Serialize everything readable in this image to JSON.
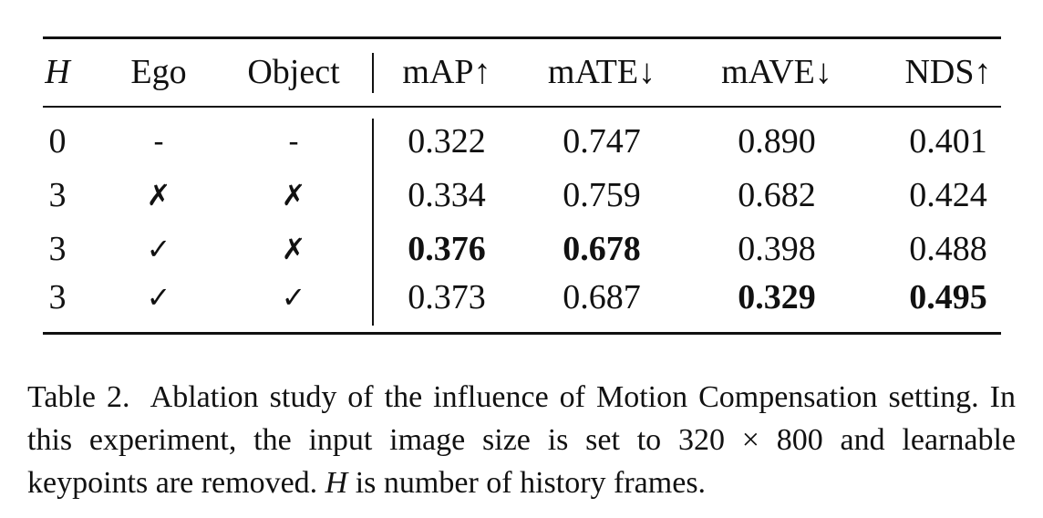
{
  "table": {
    "header": [
      "H",
      "Ego",
      "Object",
      "mAP↑",
      "mATE↓",
      "mAVE↓",
      "NDS↑"
    ],
    "rows": [
      [
        "0",
        "-",
        "-",
        "0.322",
        "0.747",
        "0.890",
        "0.401"
      ],
      [
        "3",
        "✗",
        "✗",
        "0.334",
        "0.759",
        "0.682",
        "0.424"
      ],
      [
        "3",
        "✓",
        "✗",
        "0.376",
        "0.678",
        "0.398",
        "0.488"
      ],
      [
        "3",
        "✓",
        "✓",
        "0.373",
        "0.687",
        "0.329",
        "0.495"
      ]
    ],
    "bold": [
      [],
      [],
      [
        3,
        4
      ],
      [
        5,
        6
      ]
    ]
  },
  "caption": {
    "label": "Table 2.",
    "text": [
      "Ablation study of the influence of Motion Compensation setting. In this experiment, the input image size is set to 320 × 800 and learnable keypoints are removed.",
      "H",
      "is number of history frames."
    ]
  }
}
